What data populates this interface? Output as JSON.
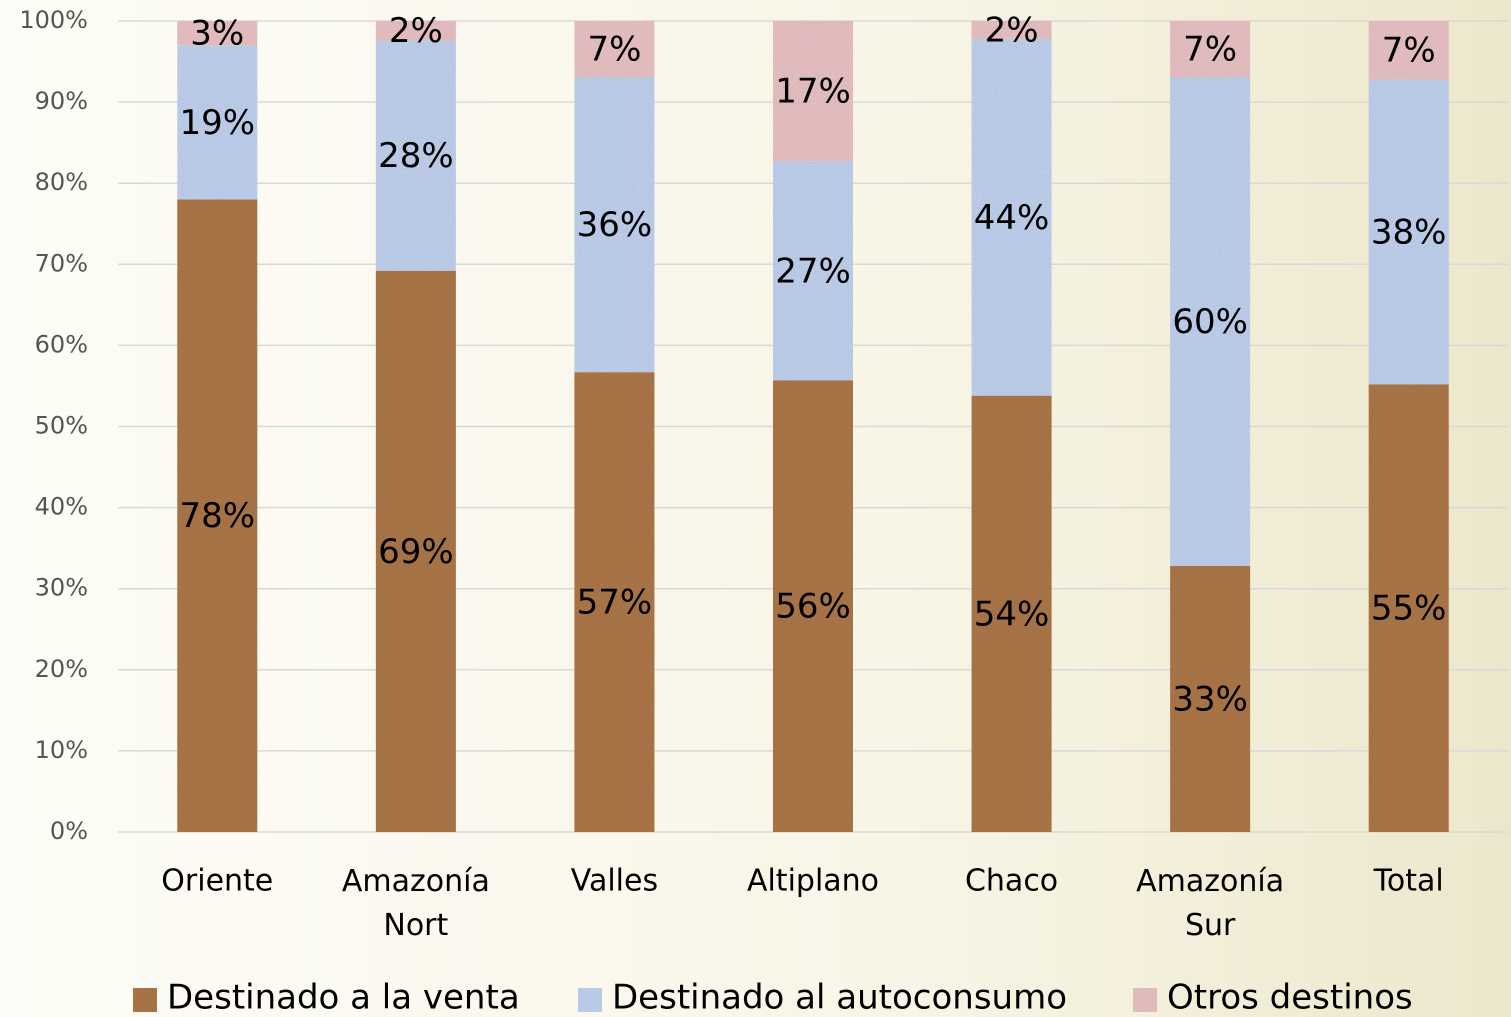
{
  "chart_data": {
    "type": "stacked_bar",
    "categories": [
      "Oriente",
      "Amazonía Nort",
      "Valles",
      "Altiplano",
      "Chaco",
      "Amazonía Sur",
      "Total"
    ],
    "series": [
      {
        "name": "Destinado a la venta",
        "color": "#b07a4c",
        "values": [
          78.0,
          69.2,
          56.7,
          55.7,
          53.8,
          32.8,
          55.2
        ],
        "value_labels": [
          "78%",
          "69%",
          "57%",
          "56%",
          "54%",
          "33%",
          "55%"
        ]
      },
      {
        "name": "Destinado al autoconsumo",
        "color": "#c4d6f4",
        "values": [
          19.0,
          28.4,
          36.4,
          27.0,
          44.0,
          60.3,
          37.6
        ],
        "value_labels": [
          "19%",
          "28%",
          "36%",
          "27%",
          "44%",
          "60%",
          "38%"
        ]
      },
      {
        "name": "Otros destinos",
        "color": "#eec6c8",
        "values": [
          3.0,
          2.4,
          6.9,
          17.3,
          2.2,
          6.9,
          7.2
        ],
        "value_labels": [
          "3%",
          "2%",
          "7%",
          "17%",
          "2%",
          "7%",
          "7%"
        ]
      }
    ],
    "ylim": [
      0,
      100
    ],
    "yticks": [
      {
        "value": 0,
        "label": "0%"
      },
      {
        "value": 10,
        "label": "10%"
      },
      {
        "value": 20,
        "label": "20%"
      },
      {
        "value": 30,
        "label": "30%"
      },
      {
        "value": 40,
        "label": "40%"
      },
      {
        "value": 50,
        "label": "50%"
      },
      {
        "value": 60,
        "label": "60%"
      },
      {
        "value": 70,
        "label": "70%"
      },
      {
        "value": 80,
        "label": "80%"
      },
      {
        "value": 90,
        "label": "90%"
      },
      {
        "value": 100,
        "label": "100%"
      }
    ],
    "grid": true,
    "legend": "bottom"
  }
}
